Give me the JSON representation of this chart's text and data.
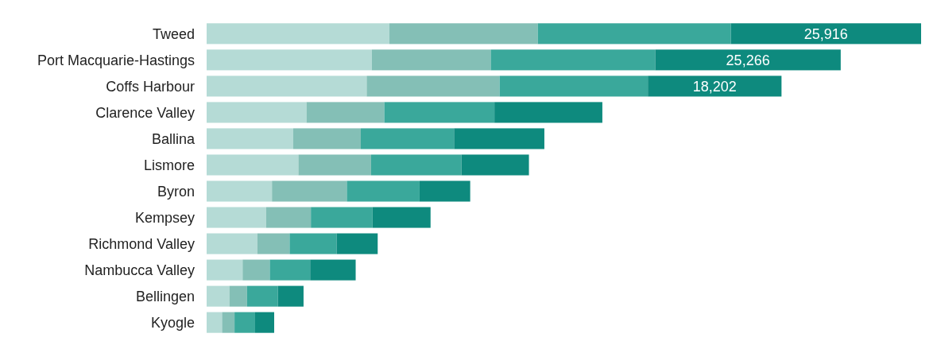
{
  "chart_data": {
    "type": "bar",
    "orientation": "horizontal",
    "stacked": true,
    "categories": [
      "Tweed",
      "Port Macquarie-Hastings",
      "Coffs Harbour",
      "Clarence Valley",
      "Ballina",
      "Lismore",
      "Byron",
      "Kempsey",
      "Richmond Valley",
      "Nambucca Valley",
      "Bellingen",
      "Kyogle"
    ],
    "series": [
      {
        "color": "#b5dbd6",
        "values": [
          24900,
          22500,
          21800,
          13600,
          11800,
          12500,
          8900,
          8100,
          6900,
          4900,
          3100,
          2100
        ]
      },
      {
        "color": "#84bfb6",
        "values": [
          20200,
          16200,
          18100,
          10600,
          9200,
          9900,
          10200,
          6100,
          4400,
          3700,
          2400,
          1700
        ]
      },
      {
        "color": "#3aa89b",
        "values": [
          26300,
          22400,
          20200,
          15000,
          12700,
          12300,
          9900,
          8400,
          6400,
          5500,
          4200,
          2800
        ]
      },
      {
        "color": "#0e8a7e",
        "values": [
          25916,
          25266,
          18202,
          14700,
          12300,
          9200,
          6900,
          7900,
          5600,
          6200,
          3500,
          2600
        ],
        "value_labels": [
          "25,916",
          "25,266",
          "18,202",
          null,
          null,
          null,
          null,
          null,
          null,
          null,
          null,
          null
        ]
      }
    ]
  }
}
